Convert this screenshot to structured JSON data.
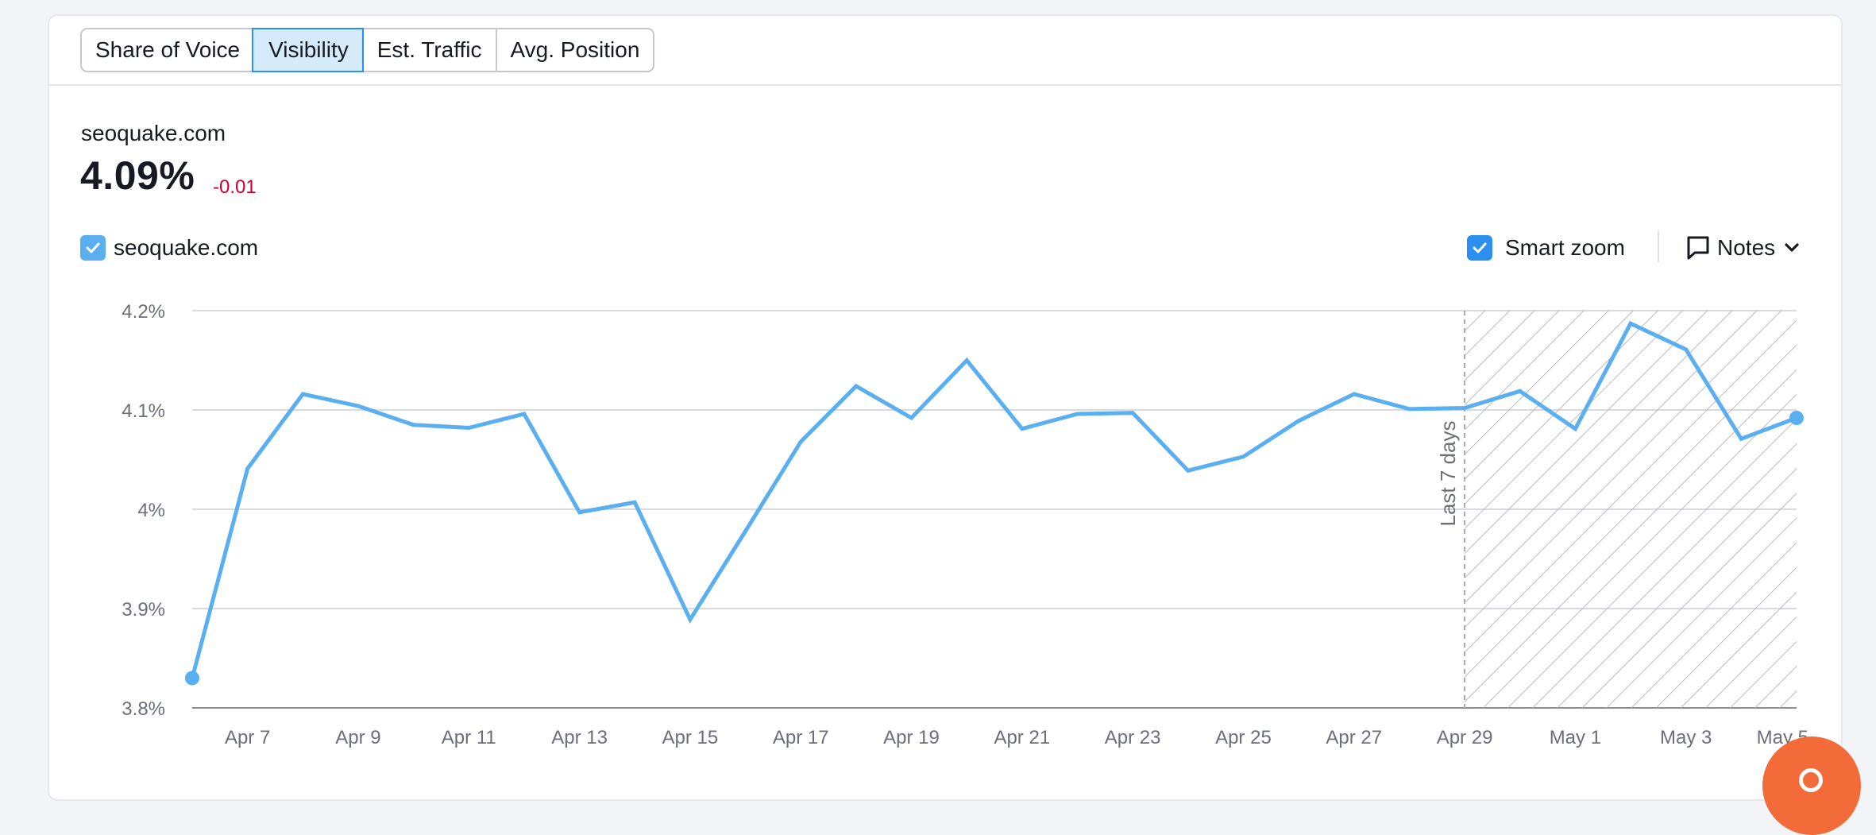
{
  "tabs": [
    {
      "label": "Share of Voice",
      "active": false
    },
    {
      "label": "Visibility",
      "active": true
    },
    {
      "label": "Est. Traffic",
      "active": false
    },
    {
      "label": "Avg. Position",
      "active": false
    }
  ],
  "summary": {
    "domain": "seoquake.com",
    "value": "4.09%",
    "delta": "-0.01"
  },
  "legend": {
    "series_label": "seoquake.com",
    "checked": true
  },
  "controls": {
    "smart_zoom_label": "Smart zoom",
    "smart_zoom_checked": true,
    "notes_label": "Notes"
  },
  "colors": {
    "series": "#5aaff0",
    "delta_negative": "#d1002f",
    "accent": "#2b8ff0",
    "help": "#f26b38"
  },
  "icons": {
    "legend_checkbox": "checkmark-icon",
    "smart_zoom_checkbox": "checkmark-icon",
    "notes": "speech-bubble-icon",
    "notes_dropdown": "chevron-down-icon",
    "help": "help-icon"
  },
  "chart_data": {
    "type": "line",
    "title": "",
    "xlabel": "",
    "ylabel": "",
    "ylim": [
      3.8,
      4.2
    ],
    "y_ticks": [
      3.8,
      3.9,
      4.0,
      4.1,
      4.2
    ],
    "y_tick_labels": [
      "3.8%",
      "3.9%",
      "4%",
      "4.1%",
      "4.2%"
    ],
    "x_tick_labels": [
      "Apr 7",
      "Apr 9",
      "Apr 11",
      "Apr 13",
      "Apr 15",
      "Apr 17",
      "Apr 19",
      "Apr 21",
      "Apr 23",
      "Apr 25",
      "Apr 27",
      "Apr 29",
      "May 1",
      "May 3",
      "May 5"
    ],
    "x_tick_dates": [
      "2024-04-07",
      "2024-04-09",
      "2024-04-11",
      "2024-04-13",
      "2024-04-15",
      "2024-04-17",
      "2024-04-19",
      "2024-04-21",
      "2024-04-23",
      "2024-04-25",
      "2024-04-27",
      "2024-04-29",
      "2024-05-01",
      "2024-05-03",
      "2024-05-05"
    ],
    "grid": true,
    "highlight": {
      "label": "Last 7 days",
      "from": "2024-04-29",
      "to": "2024-05-06"
    },
    "series": [
      {
        "name": "seoquake.com",
        "x": [
          "2024-04-06",
          "2024-04-07",
          "2024-04-08",
          "2024-04-09",
          "2024-04-10",
          "2024-04-11",
          "2024-04-12",
          "2024-04-13",
          "2024-04-14",
          "2024-04-15",
          "2024-04-16",
          "2024-04-17",
          "2024-04-18",
          "2024-04-19",
          "2024-04-20",
          "2024-04-21",
          "2024-04-22",
          "2024-04-23",
          "2024-04-24",
          "2024-04-25",
          "2024-04-26",
          "2024-04-27",
          "2024-04-28",
          "2024-04-29",
          "2024-04-30",
          "2024-05-01",
          "2024-05-02",
          "2024-05-03",
          "2024-05-04",
          "2024-05-05"
        ],
        "values": [
          3.83,
          4.041,
          4.116,
          4.104,
          4.085,
          4.082,
          4.096,
          3.997,
          4.007,
          3.889,
          3.978,
          4.068,
          4.124,
          4.092,
          4.15,
          4.081,
          4.096,
          4.097,
          4.039,
          4.053,
          4.089,
          4.116,
          4.101,
          4.102,
          4.119,
          4.081,
          4.187,
          4.161,
          4.071,
          4.092
        ]
      }
    ]
  }
}
